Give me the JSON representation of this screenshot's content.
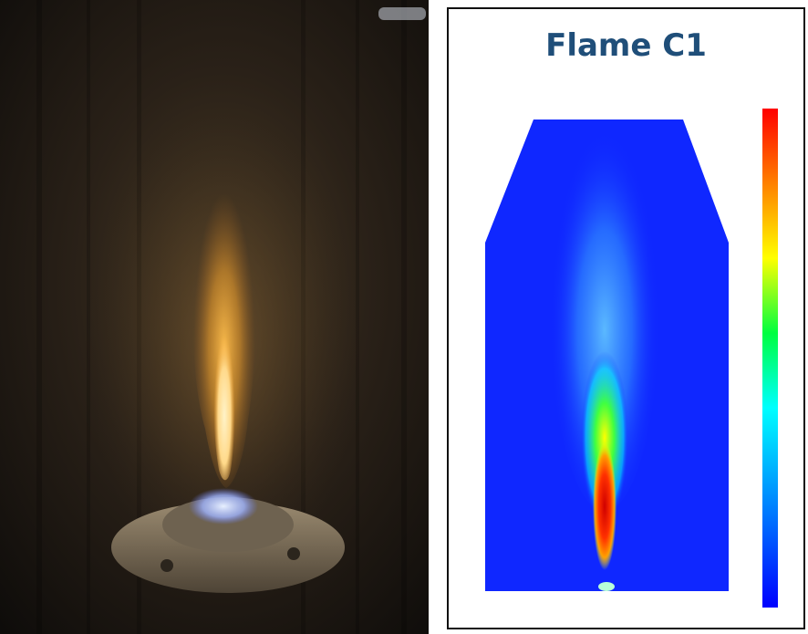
{
  "figure": {
    "simulation_panel": {
      "title": "Flame C1"
    }
  },
  "colors": {
    "photo_background": "#1a1612",
    "flame_core": "#ffd98a",
    "flame_outer": "#e59a2c",
    "burner_metal": "#8a7a64",
    "blue_ring": "#c9d8ff",
    "domain_fill": "#0f27ff",
    "title_color": "#1f4e79"
  },
  "icons": {
    "photo": "flame-photo-image",
    "simulation": "cfd-contour-image",
    "colorbar": "jet-colorbar"
  }
}
